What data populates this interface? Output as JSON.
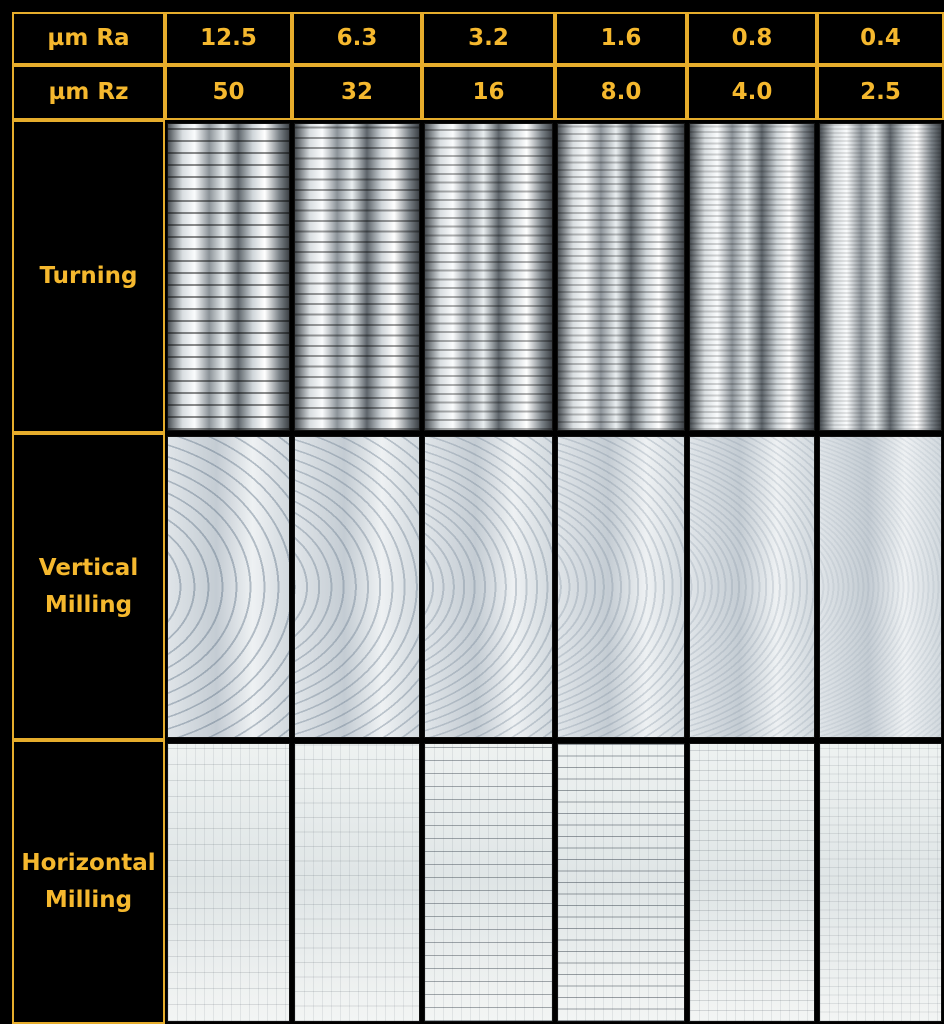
{
  "table": {
    "header_rows": [
      {
        "label": "µm Ra",
        "values": [
          "12.5",
          "6.3",
          "3.2",
          "1.6",
          "0.8",
          "0.4"
        ]
      },
      {
        "label": "µm Rz",
        "values": [
          "50",
          "32",
          "16",
          "8.0",
          "4.0",
          "2.5"
        ]
      }
    ],
    "processes": [
      "Turning",
      "Vertical Milling",
      "Horizontal Milling"
    ]
  }
}
